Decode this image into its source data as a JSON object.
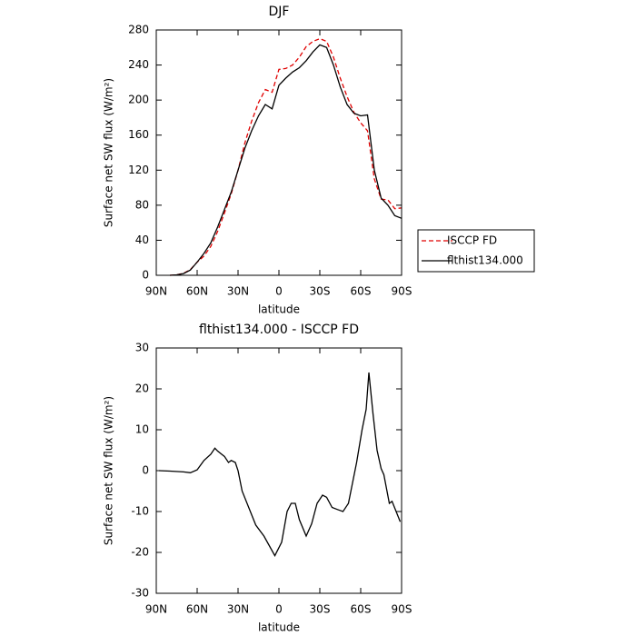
{
  "chart_data": [
    {
      "type": "line",
      "title": "DJF",
      "xlabel": "latitude",
      "ylabel": "Surface net SW flux (W/m²)",
      "x": [
        80,
        75,
        70,
        65,
        60,
        55,
        50,
        45,
        40,
        35,
        30,
        25,
        20,
        15,
        10,
        5,
        0,
        -5,
        -10,
        -15,
        -20,
        -25,
        -30,
        -35,
        -40,
        -45,
        -50,
        -55,
        -60,
        -65,
        -70,
        -75,
        -80,
        -85,
        -90
      ],
      "series": [
        {
          "name": "ISCCP FD",
          "color": "#e00000",
          "linestyle": "dashed",
          "values": [
            0,
            0.5,
            2.3,
            6.5,
            15,
            22,
            33,
            50,
            71,
            93,
            120,
            151,
            176,
            197,
            212,
            209,
            235,
            236,
            240,
            249,
            261,
            267,
            270,
            267,
            249,
            225,
            204,
            186,
            174,
            165,
            110,
            87,
            86,
            76,
            77
          ]
        },
        {
          "name": "flthist134.000",
          "color": "#000000",
          "linestyle": "solid",
          "values": [
            0,
            0.5,
            2,
            6,
            15,
            25,
            37,
            55,
            75,
            95,
            120,
            145,
            165,
            182,
            195,
            190,
            217,
            225,
            232,
            237,
            245,
            255,
            263,
            260,
            240,
            215,
            195,
            185,
            182,
            183,
            120,
            88,
            80,
            68,
            65
          ]
        }
      ],
      "xlim": [
        90,
        -90
      ],
      "xticks": [
        {
          "value": 90,
          "label": "90N"
        },
        {
          "value": 60,
          "label": "60N"
        },
        {
          "value": 30,
          "label": "30N"
        },
        0,
        {
          "value": -30,
          "label": "30S"
        },
        {
          "value": -60,
          "label": "60S"
        },
        {
          "value": -90,
          "label": "90S"
        }
      ],
      "ylim": [
        0,
        280
      ],
      "yticks": [
        0,
        40,
        80,
        120,
        160,
        200,
        240,
        280
      ],
      "legend": "right"
    },
    {
      "type": "line",
      "title": "flthist134.000 - ISCCP FD",
      "xlabel": "latitude",
      "ylabel": "Surface net SW flux (W/m²)",
      "x": [
        88,
        80,
        70,
        65,
        60,
        55,
        50,
        47,
        45,
        42,
        40,
        37,
        35,
        32,
        30,
        27,
        17,
        11,
        3,
        -2,
        -6,
        -9,
        -12,
        -15,
        -20,
        -24,
        -28,
        -32,
        -35,
        -39,
        -43,
        -47,
        -51,
        -57,
        -61,
        -64,
        -66,
        -69,
        -72,
        -75,
        -77,
        -81,
        -83,
        -89
      ],
      "series": [
        {
          "color": "#000000",
          "linestyle": "solid",
          "values": [
            0,
            -0.1,
            -0.3,
            -0.5,
            0.2,
            2.5,
            4,
            5.5,
            4.8,
            4,
            3.5,
            2,
            2.5,
            2,
            0,
            -5,
            -13.3,
            -16,
            -20.8,
            -17.5,
            -10,
            -8,
            -8,
            -12,
            -16,
            -13,
            -8,
            -6,
            -6.5,
            -9,
            -9.5,
            -10,
            -8,
            2,
            10,
            15,
            24,
            14,
            5,
            0.5,
            -1,
            -8,
            -7.5,
            -12.5
          ]
        }
      ],
      "xlim": [
        90,
        -90
      ],
      "xticks": [
        {
          "value": 90,
          "label": "90N"
        },
        {
          "value": 60,
          "label": "60N"
        },
        {
          "value": 30,
          "label": "30N"
        },
        0,
        {
          "value": -30,
          "label": "30S"
        },
        {
          "value": -60,
          "label": "60S"
        },
        {
          "value": -90,
          "label": "90S"
        }
      ],
      "ylim": [
        -30,
        30
      ],
      "yticks": [
        -30,
        -20,
        -10,
        0,
        10,
        20,
        30
      ]
    }
  ]
}
